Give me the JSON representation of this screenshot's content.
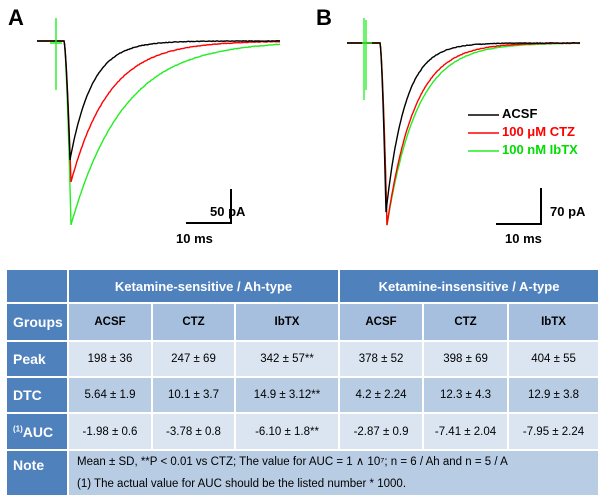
{
  "panels": [
    {
      "label": "A",
      "scale_y": "50 pA",
      "scale_x": "10 ms"
    },
    {
      "label": "B",
      "scale_y": "70 pA",
      "scale_x": "10 ms"
    }
  ],
  "legend": [
    {
      "name": "ACSF",
      "color": "#000000"
    },
    {
      "name": "100 μM CTZ",
      "color": "#ff0000"
    },
    {
      "name": "100 nM IbTX",
      "color": "#00ee00"
    }
  ],
  "table": {
    "group_headers": [
      "Ketamine-sensitive / Ah-type",
      "Ketamine-insensitive / A-type"
    ],
    "rows": [
      {
        "label": "Groups",
        "cells": [
          "ACSF",
          "CTZ",
          "IbTX",
          "ACSF",
          "CTZ",
          "IbTX"
        ]
      },
      {
        "label": "Peak",
        "cells": [
          "198 ± 36",
          "247 ± 69",
          "342 ± 57**",
          "378 ± 52",
          "398 ± 69",
          "404 ± 55"
        ]
      },
      {
        "label": "DTC",
        "cells": [
          "5.64 ± 1.9",
          "10.1 ± 3.7",
          "14.9 ± 3.12**",
          "4.2 ± 2.24",
          "12.3 ± 4.3",
          "12.9 ± 3.8"
        ]
      },
      {
        "label_sup": "(1)",
        "label": "AUC",
        "cells": [
          "-1.98 ± 0.6",
          "-3.78 ± 0.8",
          "-6.10 ± 1.8**",
          "-2.87 ± 0.9",
          "-7.41 ± 2.04",
          "-7.95 ± 2.24"
        ]
      }
    ],
    "note_label": "Note",
    "note_line1": "Mean ± SD, **P < 0.01 vs CTZ; The value for AUC = 1 ∧ 10⁷; n = 6 / Ah and n = 5 / A",
    "note_line2": "(1)  The actual value for AUC should be the listed number * 1000."
  }
}
